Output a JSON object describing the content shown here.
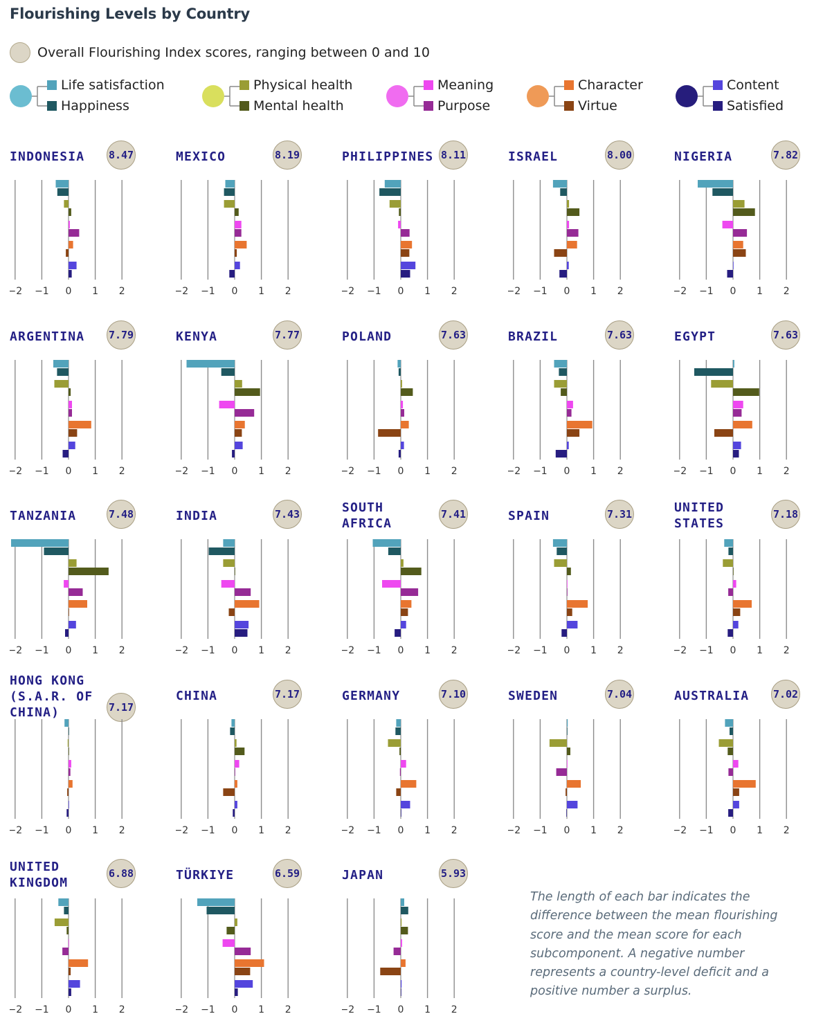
{
  "chart_data": {
    "type": "bar",
    "orientation": "horizontal",
    "layout": "small-multiples",
    "title": "Flourishing Levels by Country",
    "overall_legend": "Overall Flourishing Index scores, ranging between 0 and 10",
    "xlim": [
      -2,
      2
    ],
    "xticks": [
      "−2",
      "−1",
      "0",
      "1",
      "2"
    ],
    "xtick_values": [
      -2,
      -1,
      0,
      1,
      2
    ],
    "grid": true,
    "legend_groups": [
      {
        "group": "life",
        "color": "#6bbdd1",
        "items": [
          {
            "name": "Life satisfaction",
            "color": "#52a3bb"
          },
          {
            "name": "Happiness",
            "color": "#1f5861"
          }
        ]
      },
      {
        "group": "health",
        "color": "#d9df5d",
        "items": [
          {
            "name": "Physical health",
            "color": "#9a9d35"
          },
          {
            "name": "Mental health",
            "color": "#535b1c"
          }
        ]
      },
      {
        "group": "meaning",
        "color": "#f06cf0",
        "items": [
          {
            "name": "Meaning",
            "color": "#ee48f0"
          },
          {
            "name": "Purpose",
            "color": "#962b96"
          }
        ]
      },
      {
        "group": "character",
        "color": "#ef9a57",
        "items": [
          {
            "name": "Character",
            "color": "#e87530"
          },
          {
            "name": "Virtue",
            "color": "#8a4414"
          }
        ]
      },
      {
        "group": "content",
        "color": "#261d7c",
        "items": [
          {
            "name": "Content",
            "color": "#5445dd"
          },
          {
            "name": "Satisfied",
            "color": "#271d80"
          }
        ]
      }
    ],
    "series_order": [
      "Life satisfaction",
      "Happiness",
      "Physical health",
      "Mental health",
      "Meaning",
      "Purpose",
      "Character",
      "Virtue",
      "Content",
      "Satisfied"
    ],
    "countries": [
      {
        "name": "INDONESIA",
        "lines": [
          "INDONESIA"
        ],
        "score": "8.47",
        "values": [
          -0.48,
          -0.42,
          -0.17,
          0.1,
          0.05,
          0.4,
          0.17,
          -0.1,
          0.3,
          0.12
        ]
      },
      {
        "name": "MEXICO",
        "lines": [
          "MEXICO"
        ],
        "score": "8.19",
        "values": [
          -0.35,
          -0.4,
          -0.4,
          0.15,
          0.25,
          0.25,
          0.45,
          0.08,
          0.2,
          -0.2
        ]
      },
      {
        "name": "PHILIPPINES",
        "lines": [
          "PHILIPPINES"
        ],
        "score": "8.11",
        "values": [
          -0.6,
          -0.8,
          -0.42,
          -0.07,
          -0.1,
          0.33,
          0.42,
          0.32,
          0.55,
          0.35
        ]
      },
      {
        "name": "ISRAEL",
        "lines": [
          "ISRAEL"
        ],
        "score": "8.00",
        "values": [
          -0.52,
          -0.25,
          0.08,
          0.47,
          0.08,
          0.43,
          0.38,
          -0.48,
          0.07,
          -0.28
        ]
      },
      {
        "name": "NIGERIA",
        "lines": [
          "NIGERIA"
        ],
        "score": "7.82",
        "values": [
          -1.32,
          -0.77,
          0.43,
          0.82,
          -0.4,
          0.52,
          0.38,
          0.48,
          0.0,
          -0.22
        ]
      },
      {
        "name": "ARGENTINA",
        "lines": [
          "ARGENTINA"
        ],
        "score": "7.79",
        "values": [
          -0.57,
          -0.43,
          -0.53,
          0.08,
          0.13,
          0.13,
          0.85,
          0.32,
          0.25,
          -0.22
        ]
      },
      {
        "name": "KENYA",
        "lines": [
          "KENYA"
        ],
        "score": "7.77",
        "values": [
          -1.8,
          -0.5,
          0.28,
          0.95,
          -0.58,
          0.73,
          0.38,
          0.27,
          0.3,
          -0.1
        ]
      },
      {
        "name": "POLAND",
        "lines": [
          "POLAND"
        ],
        "score": "7.63",
        "values": [
          -0.12,
          -0.08,
          0.05,
          0.45,
          0.08,
          0.13,
          0.3,
          -0.85,
          0.12,
          -0.08
        ]
      },
      {
        "name": "BRAZIL",
        "lines": [
          "BRAZIL"
        ],
        "score": "7.63",
        "values": [
          -0.48,
          -0.3,
          -0.48,
          -0.23,
          0.23,
          0.17,
          0.95,
          0.47,
          0.07,
          -0.42
        ]
      },
      {
        "name": "EGYPT",
        "lines": [
          "EGYPT"
        ],
        "score": "7.63",
        "values": [
          0.05,
          -1.45,
          -0.82,
          0.98,
          0.38,
          0.32,
          0.72,
          -0.7,
          0.3,
          0.22
        ]
      },
      {
        "name": "TANZANIA",
        "lines": [
          "TANZANIA"
        ],
        "score": "7.48",
        "values": [
          -2.15,
          -0.92,
          0.3,
          1.5,
          -0.18,
          0.53,
          0.7,
          0.02,
          0.28,
          -0.13
        ]
      },
      {
        "name": "INDIA",
        "lines": [
          "INDIA"
        ],
        "score": "7.43",
        "values": [
          -0.43,
          -0.97,
          -0.43,
          0.0,
          -0.5,
          0.6,
          0.92,
          -0.22,
          0.52,
          0.48
        ]
      },
      {
        "name": "SOUTH AFRICA",
        "lines": [
          "SOUTH",
          "AFRICA"
        ],
        "score": "7.41",
        "values": [
          -1.05,
          -0.47,
          0.1,
          0.77,
          -0.7,
          0.65,
          0.4,
          0.27,
          0.2,
          -0.23
        ]
      },
      {
        "name": "SPAIN",
        "lines": [
          "SPAIN"
        ],
        "score": "7.31",
        "values": [
          -0.52,
          -0.38,
          -0.48,
          0.15,
          0.01,
          0.02,
          0.78,
          0.2,
          0.4,
          -0.2
        ]
      },
      {
        "name": "UNITED STATES",
        "lines": [
          "UNITED",
          "STATES"
        ],
        "score": "7.18",
        "values": [
          -0.33,
          -0.17,
          -0.38,
          0.0,
          0.12,
          -0.18,
          0.7,
          0.27,
          0.2,
          -0.2
        ]
      },
      {
        "name": "HONG KONG (S.A.R. OF CHINA)",
        "lines": [
          "HONG KONG",
          "(S.A.R. OF",
          "CHINA)"
        ],
        "score": "7.17",
        "values": [
          -0.15,
          0.0,
          -0.03,
          0.0,
          0.1,
          0.07,
          0.15,
          -0.05,
          0.0,
          -0.07
        ]
      },
      {
        "name": "CHINA",
        "lines": [
          "CHINA"
        ],
        "score": "7.17",
        "values": [
          -0.12,
          -0.17,
          0.07,
          0.37,
          0.17,
          0.0,
          0.1,
          -0.43,
          0.1,
          -0.07
        ]
      },
      {
        "name": "GERMANY",
        "lines": [
          "GERMANY"
        ],
        "score": "7.10",
        "values": [
          -0.17,
          -0.2,
          -0.48,
          -0.05,
          0.2,
          -0.03,
          0.58,
          -0.17,
          0.35,
          0.0
        ]
      },
      {
        "name": "SWEDEN",
        "lines": [
          "SWEDEN"
        ],
        "score": "7.04",
        "values": [
          0.03,
          0.0,
          -0.65,
          0.13,
          0.01,
          -0.4,
          0.52,
          -0.05,
          0.4,
          -0.02
        ]
      },
      {
        "name": "AUSTRALIA",
        "lines": [
          "AUSTRALIA"
        ],
        "score": "7.02",
        "values": [
          -0.3,
          -0.13,
          -0.53,
          -0.2,
          0.2,
          -0.17,
          0.85,
          0.23,
          0.23,
          -0.18
        ]
      },
      {
        "name": "UNITED KINGDOM",
        "lines": [
          "UNITED",
          "KINGDOM"
        ],
        "score": "6.88",
        "values": [
          -0.38,
          -0.17,
          -0.52,
          -0.07,
          0.01,
          -0.23,
          0.73,
          0.08,
          0.43,
          0.1
        ]
      },
      {
        "name": "TÜRKIYE",
        "lines": [
          "TÜRKIYE"
        ],
        "score": "6.59",
        "values": [
          -1.4,
          -1.05,
          0.1,
          -0.3,
          -0.45,
          0.6,
          1.1,
          0.58,
          0.68,
          0.12
        ]
      },
      {
        "name": "JAPAN",
        "lines": [
          "JAPAN"
        ],
        "score": "5.93",
        "values": [
          0.13,
          0.28,
          0.03,
          0.27,
          0.05,
          -0.27,
          0.18,
          -0.77,
          0.03,
          0.0
        ]
      }
    ],
    "note": "The length of each bar indicates the difference between the mean flourishing score and the mean score for each subcomponent. A negative number represents a country-level deficit and a positive number a surplus."
  }
}
